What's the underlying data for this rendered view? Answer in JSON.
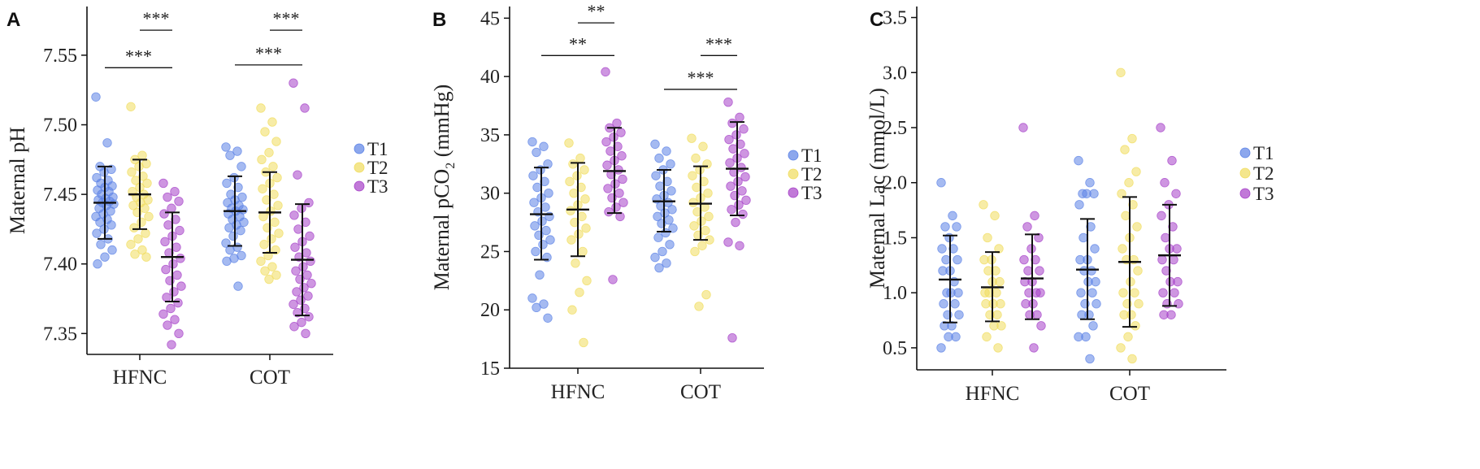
{
  "colors": {
    "T1": "#5b82e6",
    "T2": "#f0dc5c",
    "T3": "#a640c8",
    "axis": "#111111",
    "errorbar": "#111111"
  },
  "chart_data": [
    {
      "panel": "A",
      "type": "scatter",
      "ylabel": "Maternal pH",
      "ylim": [
        7.335,
        7.585
      ],
      "yticks": [
        7.35,
        7.4,
        7.45,
        7.5,
        7.55
      ],
      "ytick_labels": [
        "7.35",
        "7.40",
        "7.45",
        "7.50",
        "7.55"
      ],
      "categories": [
        "HFNC",
        "COT"
      ],
      "legend": [
        "T1",
        "T2",
        "T3"
      ],
      "legend_position": "right",
      "series": [
        {
          "name": "T1",
          "summary": [
            {
              "mean": 7.444,
              "low": 7.418,
              "high": 7.47
            },
            {
              "mean": 7.438,
              "low": 7.413,
              "high": 7.463
            }
          ],
          "points": [
            [
              7.52,
              7.487,
              7.47,
              7.468,
              7.466,
              7.462,
              7.46,
              7.458,
              7.456,
              7.455,
              7.453,
              7.452,
              7.45,
              7.448,
              7.447,
              7.446,
              7.445,
              7.444,
              7.443,
              7.442,
              7.44,
              7.438,
              7.436,
              7.434,
              7.432,
              7.43,
              7.428,
              7.425,
              7.422,
              7.418,
              7.414,
              7.41,
              7.405,
              7.4
            ],
            [
              7.484,
              7.481,
              7.478,
              7.47,
              7.462,
              7.458,
              7.455,
              7.45,
              7.448,
              7.446,
              7.444,
              7.442,
              7.44,
              7.439,
              7.438,
              7.436,
              7.434,
              7.432,
              7.43,
              7.428,
              7.426,
              7.424,
              7.42,
              7.415,
              7.412,
              7.41,
              7.406,
              7.404,
              7.402,
              7.384
            ]
          ]
        },
        {
          "name": "T2",
          "summary": [
            {
              "mean": 7.45,
              "low": 7.425,
              "high": 7.475
            },
            {
              "mean": 7.437,
              "low": 7.408,
              "high": 7.466
            }
          ],
          "points": [
            [
              7.513,
              7.478,
              7.475,
              7.472,
              7.47,
              7.466,
              7.463,
              7.46,
              7.458,
              7.455,
              7.452,
              7.45,
              7.448,
              7.446,
              7.444,
              7.442,
              7.44,
              7.437,
              7.434,
              7.43,
              7.426,
              7.422,
              7.418,
              7.414,
              7.41,
              7.407,
              7.405
            ],
            [
              7.512,
              7.502,
              7.495,
              7.488,
              7.48,
              7.475,
              7.47,
              7.466,
              7.462,
              7.458,
              7.454,
              7.45,
              7.446,
              7.442,
              7.438,
              7.434,
              7.43,
              7.426,
              7.422,
              7.418,
              7.414,
              7.41,
              7.406,
              7.402,
              7.398,
              7.395,
              7.392,
              7.389
            ]
          ]
        },
        {
          "name": "T3",
          "summary": [
            {
              "mean": 7.405,
              "low": 7.373,
              "high": 7.437
            },
            {
              "mean": 7.403,
              "low": 7.363,
              "high": 7.443
            }
          ],
          "points": [
            [
              7.458,
              7.452,
              7.448,
              7.445,
              7.44,
              7.436,
              7.432,
              7.428,
              7.424,
              7.42,
              7.416,
              7.412,
              7.408,
              7.404,
              7.4,
              7.396,
              7.392,
              7.388,
              7.384,
              7.38,
              7.376,
              7.372,
              7.368,
              7.364,
              7.36,
              7.356,
              7.35,
              7.342
            ],
            [
              7.53,
              7.512,
              7.464,
              7.444,
              7.44,
              7.435,
              7.43,
              7.425,
              7.42,
              7.416,
              7.412,
              7.408,
              7.405,
              7.402,
              7.398,
              7.395,
              7.392,
              7.389,
              7.386,
              7.383,
              7.38,
              7.377,
              7.374,
              7.371,
              7.368,
              7.365,
              7.362,
              7.358,
              7.355,
              7.35
            ]
          ]
        }
      ],
      "annotations": [
        {
          "text": "***",
          "y": 7.568,
          "from": [
            0,
            1
          ],
          "to": [
            0,
            2
          ]
        },
        {
          "text": "***",
          "y": 7.541,
          "from": [
            0,
            0
          ],
          "to": [
            0,
            2
          ]
        },
        {
          "text": "***",
          "y": 7.568,
          "from": [
            1,
            1
          ],
          "to": [
            1,
            2
          ]
        },
        {
          "text": "***",
          "y": 7.543,
          "from": [
            1,
            0
          ],
          "to": [
            1,
            2
          ]
        }
      ]
    },
    {
      "panel": "B",
      "type": "scatter",
      "ylabel": "Maternal pCO",
      "ylabel_sub": "2",
      "ylabel_unit": " (mmHg)",
      "ylim": [
        15,
        46
      ],
      "yticks": [
        15,
        20,
        25,
        30,
        35,
        40,
        45
      ],
      "ytick_labels": [
        "15",
        "20",
        "25",
        "30",
        "35",
        "40",
        "45"
      ],
      "categories": [
        "HFNC",
        "COT"
      ],
      "legend": [
        "T1",
        "T2",
        "T3"
      ],
      "legend_position": "right",
      "series": [
        {
          "name": "T1",
          "summary": [
            {
              "mean": 28.2,
              "low": 24.3,
              "high": 32.2
            },
            {
              "mean": 29.3,
              "low": 26.7,
              "high": 32.0
            }
          ],
          "points": [
            [
              34.4,
              34.0,
              33.5,
              32.5,
              32.0,
              31.5,
              31.0,
              30.5,
              30.0,
              29.6,
              29.2,
              28.8,
              28.4,
              28.0,
              27.6,
              27.2,
              26.8,
              26.4,
              26.0,
              25.6,
              25.0,
              24.5,
              23.0,
              21.0,
              20.5,
              20.2,
              19.3
            ],
            [
              34.2,
              33.6,
              33.0,
              32.5,
              32.0,
              31.5,
              31.0,
              30.6,
              30.2,
              29.8,
              29.5,
              29.2,
              28.9,
              28.6,
              28.3,
              28.0,
              27.7,
              27.4,
              27.0,
              26.6,
              26.2,
              25.6,
              25.0,
              24.5,
              24.0,
              23.6
            ]
          ]
        },
        {
          "name": "T2",
          "summary": [
            {
              "mean": 28.6,
              "low": 24.6,
              "high": 32.6
            },
            {
              "mean": 29.1,
              "low": 26.0,
              "high": 32.3
            }
          ],
          "points": [
            [
              34.3,
              33.0,
              32.5,
              32.0,
              31.5,
              31.0,
              30.5,
              30.0,
              29.5,
              29.0,
              28.5,
              28.0,
              27.5,
              27.0,
              26.5,
              26.0,
              25.0,
              24.0,
              22.5,
              21.5,
              20.0,
              17.2
            ],
            [
              34.7,
              34.0,
              33.0,
              32.5,
              32.0,
              31.5,
              31.0,
              30.5,
              30.0,
              29.6,
              29.2,
              28.8,
              28.4,
              28.0,
              27.6,
              27.2,
              26.8,
              26.4,
              26.0,
              25.5,
              25.0,
              21.3,
              20.3
            ]
          ]
        },
        {
          "name": "T3",
          "summary": [
            {
              "mean": 31.9,
              "low": 28.3,
              "high": 35.6
            },
            {
              "mean": 32.1,
              "low": 28.1,
              "high": 36.1
            }
          ],
          "points": [
            [
              40.4,
              36.0,
              35.6,
              35.2,
              34.8,
              34.4,
              34.0,
              33.6,
              33.2,
              32.8,
              32.4,
              32.0,
              31.6,
              31.2,
              30.8,
              30.4,
              30.0,
              29.6,
              29.2,
              28.8,
              28.4,
              28.0,
              22.6
            ],
            [
              37.8,
              36.5,
              36.0,
              35.5,
              35.0,
              34.6,
              34.2,
              33.8,
              33.4,
              33.0,
              32.6,
              32.2,
              31.8,
              31.4,
              31.0,
              30.6,
              30.2,
              29.8,
              29.4,
              29.0,
              28.6,
              28.2,
              27.5,
              25.8,
              25.5,
              17.6
            ]
          ]
        }
      ],
      "annotations": [
        {
          "text": "**",
          "y": 44.6,
          "from": [
            0,
            1
          ],
          "to": [
            0,
            2
          ]
        },
        {
          "text": "**",
          "y": 41.8,
          "from": [
            0,
            0
          ],
          "to": [
            0,
            2
          ]
        },
        {
          "text": "***",
          "y": 41.8,
          "from": [
            1,
            1
          ],
          "to": [
            1,
            2
          ]
        },
        {
          "text": "***",
          "y": 38.9,
          "from": [
            1,
            0
          ],
          "to": [
            1,
            2
          ]
        }
      ]
    },
    {
      "panel": "C",
      "type": "scatter",
      "ylabel": "Maternal Lac (mmol/L)",
      "ylim": [
        0.3,
        3.6
      ],
      "yticks": [
        0.5,
        1.0,
        1.5,
        2.0,
        2.5,
        3.0,
        3.5
      ],
      "ytick_labels": [
        "0.5",
        "1.0",
        "1.5",
        "2.0",
        "2.5",
        "3.0",
        "3.5"
      ],
      "categories": [
        "HFNC",
        "COT"
      ],
      "legend": [
        "T1",
        "T2",
        "T3"
      ],
      "legend_position": "right",
      "series": [
        {
          "name": "T1",
          "summary": [
            {
              "mean": 1.12,
              "low": 0.73,
              "high": 1.52
            },
            {
              "mean": 1.21,
              "low": 0.76,
              "high": 1.67
            }
          ],
          "points": [
            [
              2.0,
              1.7,
              1.6,
              1.6,
              1.5,
              1.4,
              1.4,
              1.3,
              1.3,
              1.2,
              1.2,
              1.1,
              1.0,
              1.0,
              1.0,
              0.9,
              0.9,
              0.8,
              0.8,
              0.7,
              0.7,
              0.6,
              0.6,
              0.5
            ],
            [
              2.2,
              2.0,
              1.9,
              1.9,
              1.9,
              1.8,
              1.6,
              1.5,
              1.4,
              1.3,
              1.3,
              1.2,
              1.2,
              1.1,
              1.1,
              1.0,
              1.0,
              0.9,
              0.9,
              0.8,
              0.8,
              0.7,
              0.6,
              0.6,
              0.4
            ]
          ]
        },
        {
          "name": "T2",
          "summary": [
            {
              "mean": 1.05,
              "low": 0.74,
              "high": 1.37
            },
            {
              "mean": 1.28,
              "low": 0.69,
              "high": 1.87
            }
          ],
          "points": [
            [
              1.8,
              1.7,
              1.5,
              1.4,
              1.3,
              1.3,
              1.2,
              1.2,
              1.1,
              1.1,
              1.0,
              1.0,
              1.0,
              0.9,
              0.9,
              0.9,
              0.8,
              0.8,
              0.7,
              0.7,
              0.6,
              0.5
            ],
            [
              3.0,
              2.4,
              2.3,
              2.1,
              2.0,
              1.9,
              1.8,
              1.7,
              1.6,
              1.5,
              1.4,
              1.3,
              1.3,
              1.2,
              1.1,
              1.0,
              1.0,
              0.9,
              0.9,
              0.8,
              0.8,
              0.7,
              0.6,
              0.5,
              0.4
            ]
          ]
        },
        {
          "name": "T3",
          "summary": [
            {
              "mean": 1.13,
              "low": 0.76,
              "high": 1.53
            },
            {
              "mean": 1.34,
              "low": 0.88,
              "high": 1.8
            }
          ],
          "points": [
            [
              2.5,
              1.7,
              1.6,
              1.5,
              1.4,
              1.3,
              1.3,
              1.2,
              1.2,
              1.1,
              1.1,
              1.0,
              1.0,
              1.0,
              0.9,
              0.9,
              0.8,
              0.8,
              0.7,
              0.5
            ],
            [
              2.5,
              2.2,
              2.0,
              1.9,
              1.8,
              1.7,
              1.6,
              1.5,
              1.4,
              1.4,
              1.3,
              1.3,
              1.2,
              1.1,
              1.1,
              1.0,
              1.0,
              0.9,
              0.9,
              0.8,
              0.8
            ]
          ]
        }
      ],
      "annotations": []
    }
  ]
}
